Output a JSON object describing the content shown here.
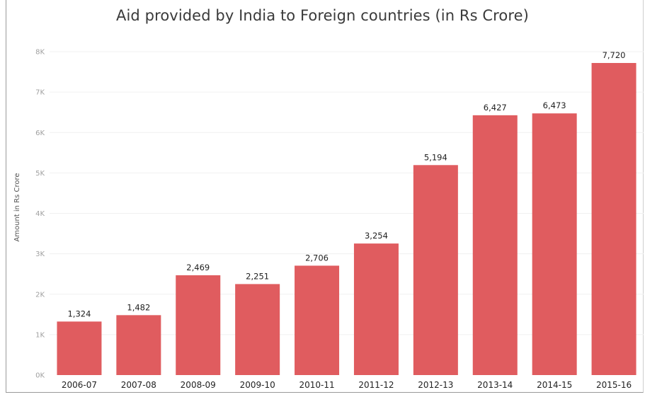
{
  "chart_data": {
    "type": "bar",
    "title": "Aid provided by India to Foreign countries (in Rs Crore)",
    "xlabel": "",
    "ylabel": "Amount in Rs Crore",
    "categories": [
      "2006-07",
      "2007-08",
      "2008-09",
      "2009-10",
      "2010-11",
      "2011-12",
      "2012-13",
      "2013-14",
      "2014-15",
      "2015-16"
    ],
    "values": [
      1324,
      1482,
      2469,
      2251,
      2706,
      3254,
      5194,
      6427,
      6473,
      7720
    ],
    "value_labels": [
      "1,324",
      "1,482",
      "2,469",
      "2,251",
      "2,706",
      "3,254",
      "5,194",
      "6,427",
      "6,473",
      "7,720"
    ],
    "ylim": [
      0,
      8000
    ],
    "yticks": [
      0,
      1000,
      2000,
      3000,
      4000,
      5000,
      6000,
      7000,
      8000
    ],
    "ytick_labels": [
      "0K",
      "1K",
      "2K",
      "3K",
      "4K",
      "5K",
      "6K",
      "7K",
      "8K"
    ],
    "grid": true,
    "bar_color": "#e05c5f",
    "grid_color": "#f0f0f0"
  }
}
